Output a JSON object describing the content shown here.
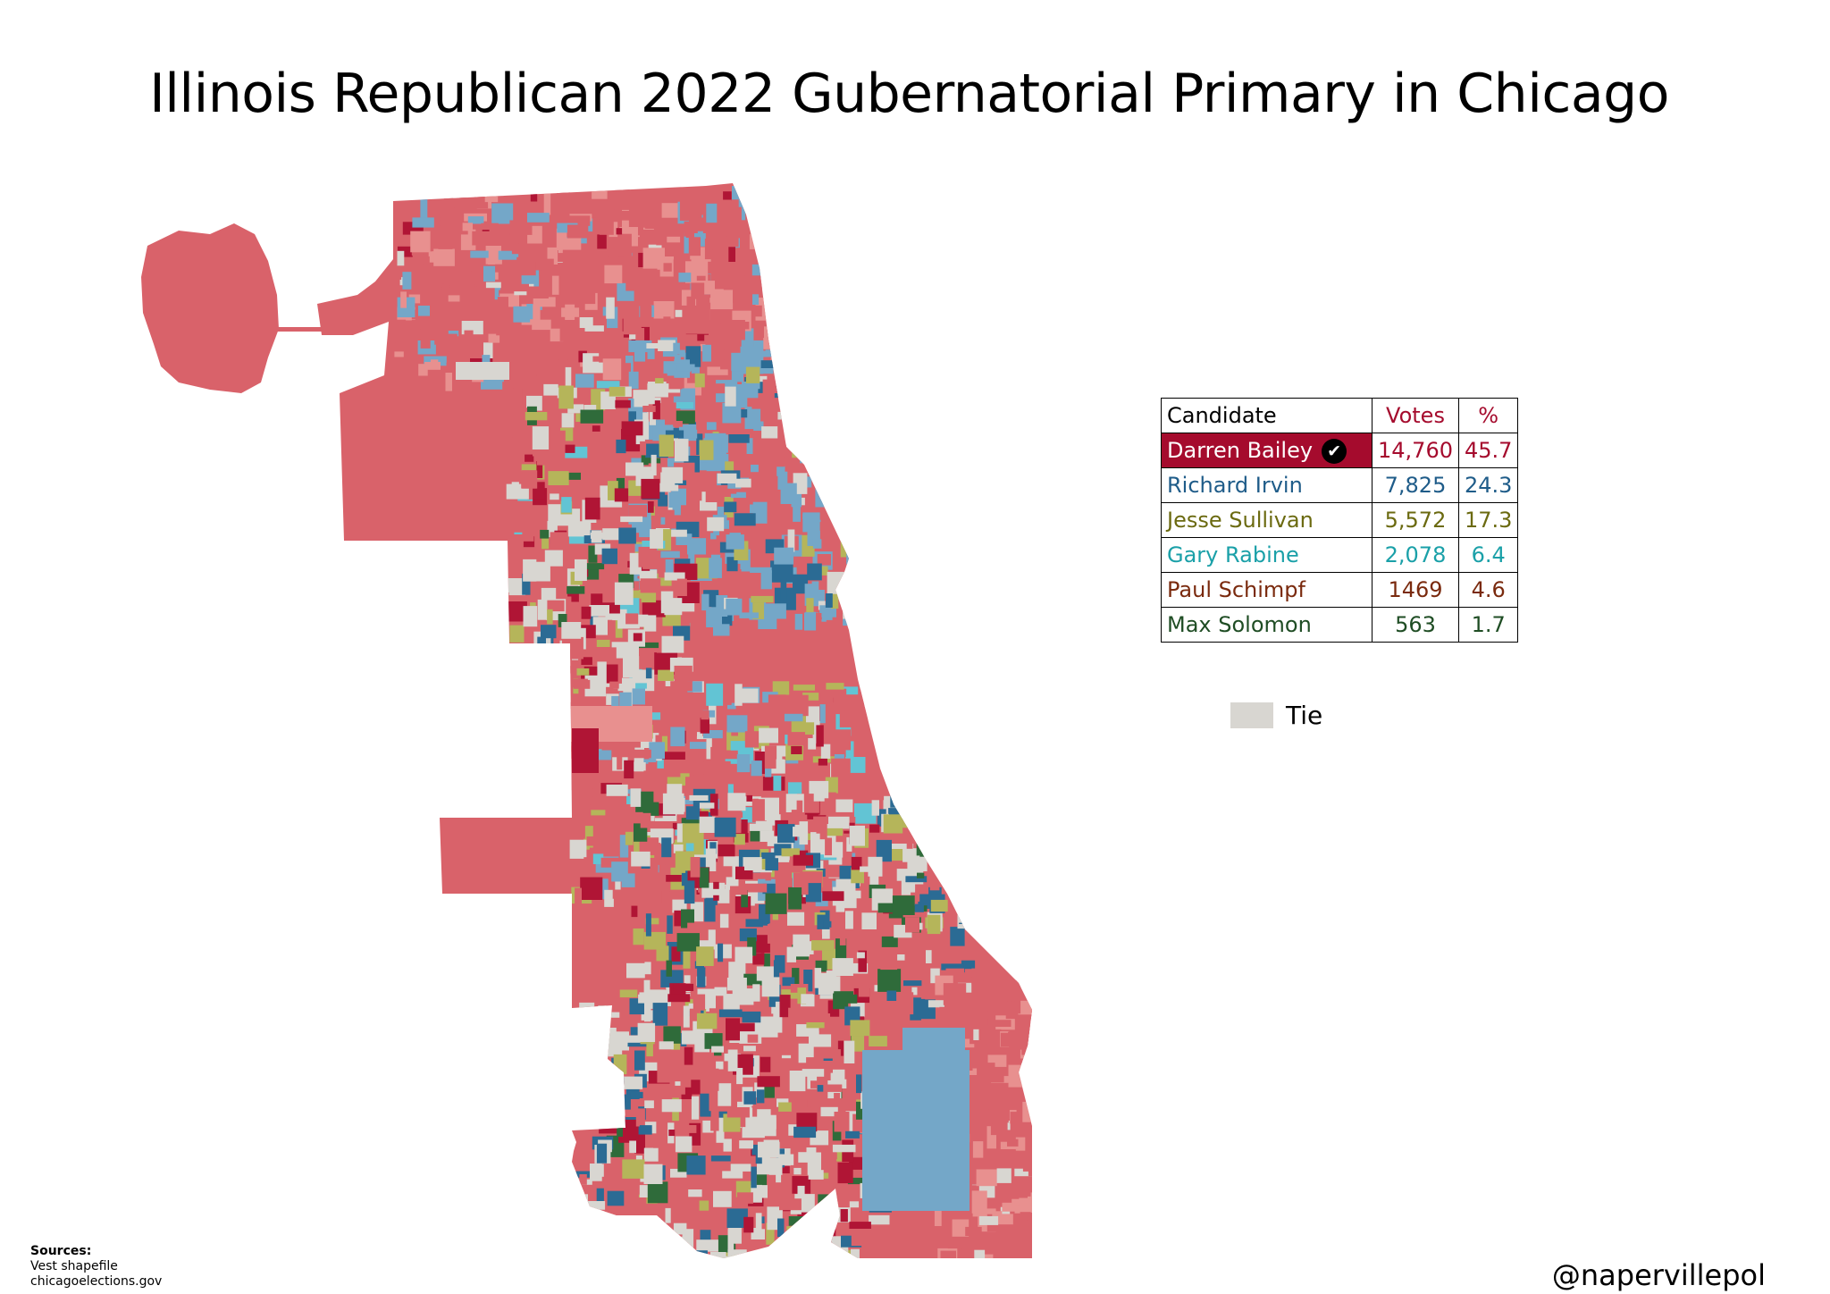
{
  "title": "Illinois Republican 2022 Gubernatorial Primary in Chicago",
  "results_table": {
    "headers": {
      "candidate": "Candidate",
      "votes": "Votes",
      "percent": "%"
    },
    "rows": [
      {
        "candidate": "Darren Bailey",
        "votes": "14,760",
        "percent": "45.7",
        "color": "#a50b2d",
        "winner": true
      },
      {
        "candidate": "Richard Irvin",
        "votes": "7,825",
        "percent": "24.3",
        "color": "#1f5c89",
        "winner": false
      },
      {
        "candidate": "Jesse Sullivan",
        "votes": "5,572",
        "percent": "17.3",
        "color": "#6b6a10",
        "winner": false
      },
      {
        "candidate": "Gary Rabine",
        "votes": "2,078",
        "percent": "6.4",
        "color": "#1aa0a8",
        "winner": false
      },
      {
        "candidate": "Paul Schimpf",
        "votes": "1469",
        "percent": "4.6",
        "color": "#7a2a0e",
        "winner": false
      },
      {
        "candidate": "Max Solomon",
        "votes": "563",
        "percent": "1.7",
        "color": "#1f4d24",
        "winner": false
      }
    ],
    "winner_icon": "check-circle-icon"
  },
  "legend": {
    "tie_label": "Tie",
    "tie_color": "#d8d6d1"
  },
  "map_colors": {
    "bailey": "#d9626a",
    "bailey_light": "#e8908f",
    "bailey_strong": "#b01535",
    "irvin": "#74a7c8",
    "irvin_strong": "#2b6b94",
    "sullivan": "#b5b55a",
    "rabine": "#62c4d4",
    "solomon": "#2f6b3a",
    "tie": "#d8d6d1"
  },
  "sources": {
    "heading": "Sources:",
    "lines": [
      "Vest shapefile",
      "chicagoelections.gov"
    ]
  },
  "credit": "@napervillepol"
}
